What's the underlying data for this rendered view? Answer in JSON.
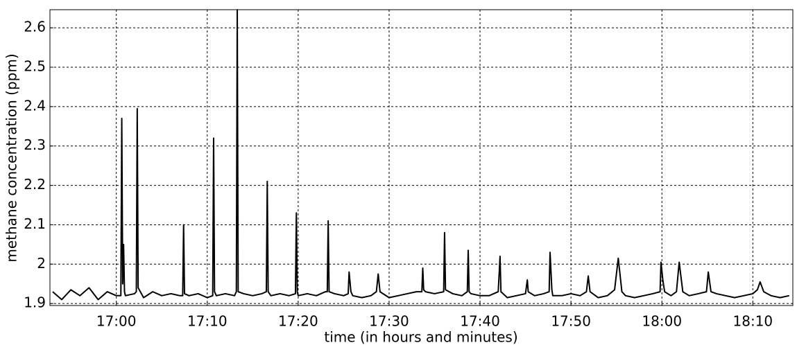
{
  "chart_data": {
    "type": "line",
    "xlabel": "time (in hours and minutes)",
    "ylabel": "methane concentration (ppm)",
    "color": "#000000",
    "grid": true,
    "xlim": [
      1012.7,
      1094.4
    ],
    "ylim": [
      1.895,
      2.646
    ],
    "xticks": [
      {
        "value": 1020,
        "label": "17:00"
      },
      {
        "value": 1030,
        "label": "17:10"
      },
      {
        "value": 1040,
        "label": "17:20"
      },
      {
        "value": 1050,
        "label": "17:30"
      },
      {
        "value": 1060,
        "label": "17:40"
      },
      {
        "value": 1070,
        "label": "17:50"
      },
      {
        "value": 1080,
        "label": "18:00"
      },
      {
        "value": 1090,
        "label": "18:10"
      }
    ],
    "yticks": [
      1.9,
      2,
      2.1,
      2.2,
      2.3,
      2.4,
      2.5,
      2.6
    ],
    "x": [
      1013,
      1014,
      1015,
      1016,
      1017,
      1018,
      1019,
      1020,
      1020.5,
      1020.6,
      1020.7,
      1020.8,
      1020.9,
      1021,
      1022,
      1022.2,
      1022.3,
      1022.4,
      1023,
      1024,
      1025,
      1026,
      1027,
      1027.3,
      1027.4,
      1027.5,
      1028,
      1029,
      1030,
      1030.6,
      1030.7,
      1030.8,
      1031,
      1032,
      1033,
      1033.2,
      1033.3,
      1033.4,
      1034,
      1035,
      1036,
      1036.5,
      1036.6,
      1036.7,
      1037,
      1038,
      1039,
      1039.7,
      1039.8,
      1039.9,
      1040,
      1041,
      1042,
      1043,
      1043.2,
      1043.3,
      1043.4,
      1044,
      1045,
      1045.5,
      1045.6,
      1045.8,
      1046,
      1047,
      1048,
      1048.6,
      1048.8,
      1049,
      1050,
      1051,
      1052,
      1053,
      1053.6,
      1053.7,
      1053.8,
      1054,
      1055,
      1056,
      1056.1,
      1056.2,
      1057,
      1058,
      1058.6,
      1058.7,
      1058.8,
      1059,
      1060,
      1061,
      1062,
      1062.2,
      1062.3,
      1063,
      1064,
      1065,
      1065.2,
      1065.3,
      1066,
      1067,
      1067.6,
      1067.7,
      1067.9,
      1068,
      1069,
      1070,
      1071,
      1071.7,
      1071.9,
      1072.1,
      1073,
      1074,
      1074.8,
      1075.2,
      1075.6,
      1076,
      1077,
      1078,
      1079,
      1079.8,
      1079.9,
      1080.1,
      1080.3,
      1081,
      1081.6,
      1081.9,
      1082.3,
      1083,
      1084,
      1084.9,
      1085.1,
      1085.4,
      1086,
      1087,
      1088,
      1089,
      1090,
      1090.5,
      1090.8,
      1091.2,
      1092,
      1093,
      1094
    ],
    "values": [
      1.93,
      1.91,
      1.935,
      1.92,
      1.94,
      1.91,
      1.93,
      1.92,
      1.92,
      2.37,
      1.95,
      2.05,
      1.93,
      1.92,
      1.925,
      1.93,
      2.395,
      1.94,
      1.915,
      1.93,
      1.92,
      1.925,
      1.92,
      1.92,
      2.1,
      1.925,
      1.92,
      1.925,
      1.915,
      1.92,
      2.32,
      1.93,
      1.92,
      1.925,
      1.92,
      1.93,
      2.646,
      1.93,
      1.925,
      1.92,
      1.925,
      1.93,
      2.21,
      1.93,
      1.92,
      1.925,
      1.92,
      1.925,
      2.13,
      1.93,
      1.92,
      1.925,
      1.92,
      1.93,
      1.93,
      2.11,
      1.93,
      1.925,
      1.92,
      1.925,
      1.98,
      1.93,
      1.92,
      1.915,
      1.92,
      1.93,
      1.975,
      1.93,
      1.915,
      1.92,
      1.925,
      1.93,
      1.93,
      1.99,
      1.935,
      1.93,
      1.925,
      1.93,
      2.08,
      1.935,
      1.925,
      1.92,
      1.93,
      2.035,
      1.93,
      1.925,
      1.92,
      1.92,
      1.93,
      2.02,
      1.93,
      1.915,
      1.92,
      1.925,
      1.96,
      1.93,
      1.92,
      1.925,
      1.93,
      2.03,
      1.935,
      1.92,
      1.92,
      1.925,
      1.92,
      1.93,
      1.97,
      1.93,
      1.915,
      1.92,
      1.935,
      2.015,
      1.93,
      1.92,
      1.915,
      1.92,
      1.925,
      1.93,
      2.005,
      1.96,
      1.93,
      1.92,
      1.93,
      2.005,
      1.93,
      1.92,
      1.925,
      1.93,
      1.98,
      1.93,
      1.925,
      1.92,
      1.915,
      1.92,
      1.925,
      1.935,
      1.955,
      1.93,
      1.92,
      1.915,
      1.92
    ]
  }
}
